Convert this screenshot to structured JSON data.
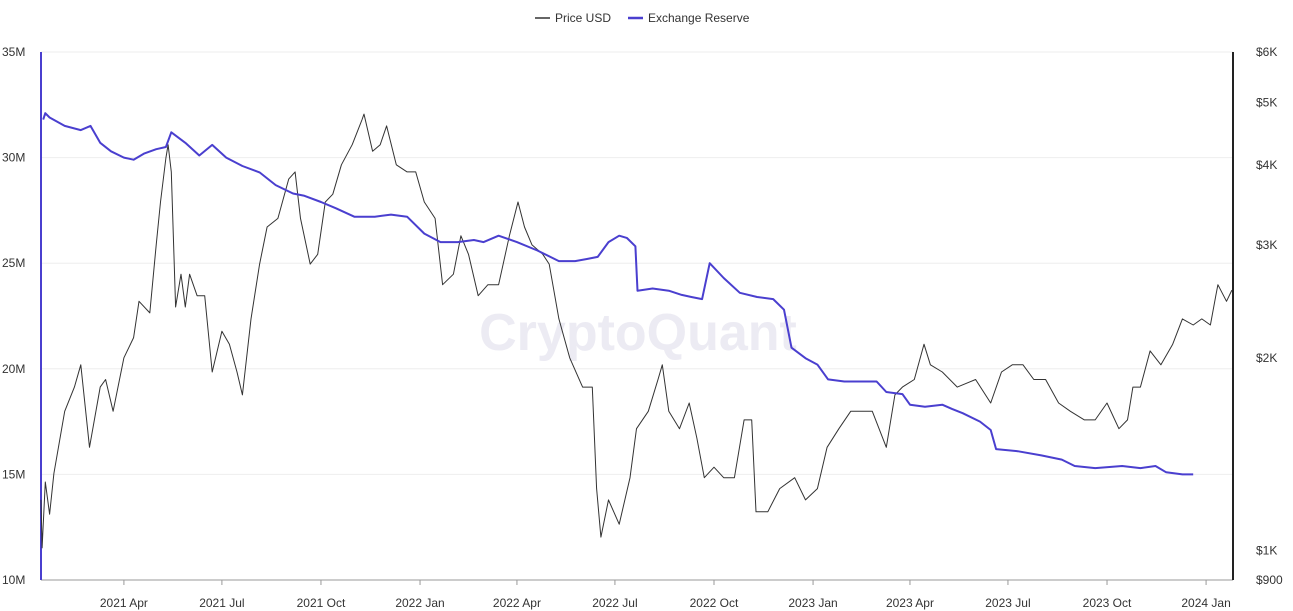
{
  "watermark": "CryptoQuant",
  "legend": {
    "price_label": "Price USD",
    "reserve_label": "Exchange Reserve",
    "price_color": "#666666",
    "reserve_color": "#4a3fcf"
  },
  "chart_data": {
    "type": "line",
    "title": "",
    "grid": "horizontal",
    "legend_position": "top-center",
    "x_ticks": [
      "2021 Apr",
      "2021 Jul",
      "2021 Oct",
      "2022 Jan",
      "2022 Apr",
      "2022 Jul",
      "2022 Oct",
      "2023 Jan",
      "2023 Apr",
      "2023 Jul",
      "2023 Oct",
      "2024 Jan"
    ],
    "x_tick_dates": [
      "2021-04-01",
      "2021-07-01",
      "2021-10-01",
      "2022-01-01",
      "2022-04-01",
      "2022-07-01",
      "2022-10-01",
      "2023-01-01",
      "2023-04-01",
      "2023-07-01",
      "2023-10-01",
      "2024-01-01"
    ],
    "x_range": [
      "2021-01-14",
      "2024-01-26"
    ],
    "y_left": {
      "label": "",
      "range": [
        10000000,
        35000000
      ],
      "ticks": [
        10000000,
        15000000,
        20000000,
        25000000,
        30000000,
        35000000
      ],
      "tick_labels": [
        "10M",
        "15M",
        "20M",
        "25M",
        "30M",
        "35M"
      ]
    },
    "y_right": {
      "label": "",
      "scale": "log",
      "range": [
        900,
        6000
      ],
      "ticks": [
        900,
        1000,
        2000,
        3000,
        4000,
        5000,
        6000
      ],
      "tick_labels": [
        "$900",
        "$1K",
        "$2K",
        "$3K",
        "$4K",
        "$5K",
        "$6K"
      ]
    },
    "series": [
      {
        "name": "Exchange Reserve",
        "axis": "left",
        "color": "#4a3fcf",
        "points": [
          [
            "2021-01-16",
            31800000
          ],
          [
            "2021-01-18",
            32100000
          ],
          [
            "2021-01-22",
            31900000
          ],
          [
            "2021-02-05",
            31500000
          ],
          [
            "2021-02-20",
            31300000
          ],
          [
            "2021-03-01",
            31500000
          ],
          [
            "2021-03-10",
            30700000
          ],
          [
            "2021-03-20",
            30300000
          ],
          [
            "2021-04-01",
            30000000
          ],
          [
            "2021-04-10",
            29900000
          ],
          [
            "2021-04-20",
            30200000
          ],
          [
            "2021-05-01",
            30400000
          ],
          [
            "2021-05-10",
            30500000
          ],
          [
            "2021-05-15",
            31200000
          ],
          [
            "2021-05-28",
            30700000
          ],
          [
            "2021-06-10",
            30100000
          ],
          [
            "2021-06-22",
            30600000
          ],
          [
            "2021-07-05",
            30000000
          ],
          [
            "2021-07-20",
            29600000
          ],
          [
            "2021-08-05",
            29300000
          ],
          [
            "2021-08-20",
            28700000
          ],
          [
            "2021-09-05",
            28300000
          ],
          [
            "2021-09-15",
            28200000
          ],
          [
            "2021-10-01",
            27900000
          ],
          [
            "2021-10-15",
            27600000
          ],
          [
            "2021-11-01",
            27200000
          ],
          [
            "2021-11-20",
            27200000
          ],
          [
            "2021-12-05",
            27300000
          ],
          [
            "2021-12-20",
            27200000
          ],
          [
            "2022-01-05",
            26400000
          ],
          [
            "2022-01-20",
            26000000
          ],
          [
            "2022-02-05",
            26000000
          ],
          [
            "2022-02-20",
            26100000
          ],
          [
            "2022-03-01",
            26000000
          ],
          [
            "2022-03-15",
            26300000
          ],
          [
            "2022-04-01",
            26000000
          ],
          [
            "2022-04-20",
            25600000
          ],
          [
            "2022-05-10",
            25100000
          ],
          [
            "2022-05-25",
            25100000
          ],
          [
            "2022-06-05",
            25200000
          ],
          [
            "2022-06-15",
            25300000
          ],
          [
            "2022-06-25",
            26000000
          ],
          [
            "2022-07-05",
            26300000
          ],
          [
            "2022-07-12",
            26200000
          ],
          [
            "2022-07-20",
            25800000
          ],
          [
            "2022-07-22",
            23700000
          ],
          [
            "2022-08-05",
            23800000
          ],
          [
            "2022-08-20",
            23700000
          ],
          [
            "2022-09-01",
            23500000
          ],
          [
            "2022-09-10",
            23400000
          ],
          [
            "2022-09-20",
            23300000
          ],
          [
            "2022-09-27",
            25000000
          ],
          [
            "2022-10-10",
            24300000
          ],
          [
            "2022-10-25",
            23600000
          ],
          [
            "2022-11-10",
            23400000
          ],
          [
            "2022-11-25",
            23300000
          ],
          [
            "2022-12-05",
            22800000
          ],
          [
            "2022-12-12",
            21000000
          ],
          [
            "2022-12-25",
            20500000
          ],
          [
            "2023-01-05",
            20200000
          ],
          [
            "2023-01-15",
            19500000
          ],
          [
            "2023-01-30",
            19400000
          ],
          [
            "2023-02-20",
            19400000
          ],
          [
            "2023-03-01",
            19400000
          ],
          [
            "2023-03-10",
            18900000
          ],
          [
            "2023-03-25",
            18800000
          ],
          [
            "2023-04-01",
            18300000
          ],
          [
            "2023-04-15",
            18200000
          ],
          [
            "2023-05-01",
            18300000
          ],
          [
            "2023-05-10",
            18100000
          ],
          [
            "2023-05-20",
            17900000
          ],
          [
            "2023-06-05",
            17500000
          ],
          [
            "2023-06-15",
            17100000
          ],
          [
            "2023-06-20",
            16200000
          ],
          [
            "2023-07-10",
            16100000
          ],
          [
            "2023-08-01",
            15900000
          ],
          [
            "2023-08-20",
            15700000
          ],
          [
            "2023-09-01",
            15400000
          ],
          [
            "2023-09-20",
            15300000
          ],
          [
            "2023-10-15",
            15400000
          ],
          [
            "2023-11-01",
            15300000
          ],
          [
            "2023-11-15",
            15400000
          ],
          [
            "2023-11-25",
            15100000
          ],
          [
            "2023-12-10",
            15000000
          ],
          [
            "2023-12-20",
            15000000
          ]
        ]
      },
      {
        "name": "Price USD",
        "axis": "right",
        "color": "#333333",
        "points": [
          [
            "2021-01-14",
            1200
          ],
          [
            "2021-01-15",
            1010
          ],
          [
            "2021-01-18",
            1280
          ],
          [
            "2021-01-22",
            1140
          ],
          [
            "2021-01-26",
            1320
          ],
          [
            "2021-02-05",
            1650
          ],
          [
            "2021-02-14",
            1800
          ],
          [
            "2021-02-20",
            1950
          ],
          [
            "2021-02-28",
            1450
          ],
          [
            "2021-03-10",
            1800
          ],
          [
            "2021-03-15",
            1850
          ],
          [
            "2021-03-22",
            1650
          ],
          [
            "2021-04-01",
            2000
          ],
          [
            "2021-04-10",
            2150
          ],
          [
            "2021-04-15",
            2450
          ],
          [
            "2021-04-25",
            2350
          ],
          [
            "2021-05-01",
            3000
          ],
          [
            "2021-05-05",
            3500
          ],
          [
            "2021-05-10",
            4100
          ],
          [
            "2021-05-12",
            4300
          ],
          [
            "2021-05-15",
            3900
          ],
          [
            "2021-05-19",
            2400
          ],
          [
            "2021-05-24",
            2700
          ],
          [
            "2021-05-28",
            2400
          ],
          [
            "2021-06-01",
            2700
          ],
          [
            "2021-06-08",
            2500
          ],
          [
            "2021-06-15",
            2500
          ],
          [
            "2021-06-22",
            1900
          ],
          [
            "2021-07-01",
            2200
          ],
          [
            "2021-07-08",
            2100
          ],
          [
            "2021-07-15",
            1900
          ],
          [
            "2021-07-20",
            1750
          ],
          [
            "2021-07-28",
            2300
          ],
          [
            "2021-08-05",
            2800
          ],
          [
            "2021-08-12",
            3200
          ],
          [
            "2021-08-22",
            3300
          ],
          [
            "2021-09-01",
            3800
          ],
          [
            "2021-09-07",
            3900
          ],
          [
            "2021-09-12",
            3300
          ],
          [
            "2021-09-21",
            2800
          ],
          [
            "2021-09-28",
            2900
          ],
          [
            "2021-10-05",
            3500
          ],
          [
            "2021-10-12",
            3600
          ],
          [
            "2021-10-20",
            4000
          ],
          [
            "2021-10-30",
            4300
          ],
          [
            "2021-11-08",
            4700
          ],
          [
            "2021-11-10",
            4800
          ],
          [
            "2021-11-18",
            4200
          ],
          [
            "2021-11-25",
            4300
          ],
          [
            "2021-12-01",
            4600
          ],
          [
            "2021-12-10",
            4000
          ],
          [
            "2021-12-20",
            3900
          ],
          [
            "2021-12-28",
            3900
          ],
          [
            "2022-01-05",
            3500
          ],
          [
            "2022-01-15",
            3300
          ],
          [
            "2022-01-22",
            2600
          ],
          [
            "2022-02-01",
            2700
          ],
          [
            "2022-02-08",
            3100
          ],
          [
            "2022-02-15",
            2900
          ],
          [
            "2022-02-24",
            2500
          ],
          [
            "2022-03-05",
            2600
          ],
          [
            "2022-03-15",
            2600
          ],
          [
            "2022-03-25",
            3100
          ],
          [
            "2022-04-02",
            3500
          ],
          [
            "2022-04-08",
            3200
          ],
          [
            "2022-04-15",
            3000
          ],
          [
            "2022-04-25",
            2900
          ],
          [
            "2022-05-01",
            2800
          ],
          [
            "2022-05-10",
            2300
          ],
          [
            "2022-05-20",
            2000
          ],
          [
            "2022-06-01",
            1800
          ],
          [
            "2022-06-10",
            1800
          ],
          [
            "2022-06-14",
            1250
          ],
          [
            "2022-06-18",
            1050
          ],
          [
            "2022-06-25",
            1200
          ],
          [
            "2022-07-05",
            1100
          ],
          [
            "2022-07-15",
            1300
          ],
          [
            "2022-07-21",
            1550
          ],
          [
            "2022-08-01",
            1650
          ],
          [
            "2022-08-10",
            1850
          ],
          [
            "2022-08-14",
            1950
          ],
          [
            "2022-08-20",
            1650
          ],
          [
            "2022-08-30",
            1550
          ],
          [
            "2022-09-08",
            1700
          ],
          [
            "2022-09-15",
            1500
          ],
          [
            "2022-09-22",
            1300
          ],
          [
            "2022-10-01",
            1350
          ],
          [
            "2022-10-10",
            1300
          ],
          [
            "2022-10-20",
            1300
          ],
          [
            "2022-10-29",
            1600
          ],
          [
            "2022-11-05",
            1600
          ],
          [
            "2022-11-09",
            1150
          ],
          [
            "2022-11-20",
            1150
          ],
          [
            "2022-12-01",
            1250
          ],
          [
            "2022-12-15",
            1300
          ],
          [
            "2022-12-25",
            1200
          ],
          [
            "2023-01-05",
            1250
          ],
          [
            "2023-01-14",
            1450
          ],
          [
            "2023-01-25",
            1550
          ],
          [
            "2023-02-05",
            1650
          ],
          [
            "2023-02-15",
            1650
          ],
          [
            "2023-02-25",
            1650
          ],
          [
            "2023-03-10",
            1450
          ],
          [
            "2023-03-18",
            1750
          ],
          [
            "2023-03-25",
            1800
          ],
          [
            "2023-04-05",
            1850
          ],
          [
            "2023-04-14",
            2100
          ],
          [
            "2023-04-20",
            1950
          ],
          [
            "2023-05-01",
            1900
          ],
          [
            "2023-05-15",
            1800
          ],
          [
            "2023-06-01",
            1850
          ],
          [
            "2023-06-15",
            1700
          ],
          [
            "2023-06-25",
            1900
          ],
          [
            "2023-07-05",
            1950
          ],
          [
            "2023-07-15",
            1950
          ],
          [
            "2023-07-25",
            1850
          ],
          [
            "2023-08-05",
            1850
          ],
          [
            "2023-08-17",
            1700
          ],
          [
            "2023-08-28",
            1650
          ],
          [
            "2023-09-10",
            1600
          ],
          [
            "2023-09-20",
            1600
          ],
          [
            "2023-10-01",
            1700
          ],
          [
            "2023-10-12",
            1550
          ],
          [
            "2023-10-20",
            1600
          ],
          [
            "2023-10-25",
            1800
          ],
          [
            "2023-11-01",
            1800
          ],
          [
            "2023-11-10",
            2050
          ],
          [
            "2023-11-20",
            1950
          ],
          [
            "2023-12-01",
            2100
          ],
          [
            "2023-12-10",
            2300
          ],
          [
            "2023-12-20",
            2250
          ],
          [
            "2023-12-28",
            2300
          ],
          [
            "2024-01-05",
            2250
          ],
          [
            "2024-01-10",
            2500
          ],
          [
            "2024-01-12",
            2600
          ],
          [
            "2024-01-20",
            2450
          ],
          [
            "2024-01-25",
            2550
          ]
        ]
      }
    ]
  }
}
